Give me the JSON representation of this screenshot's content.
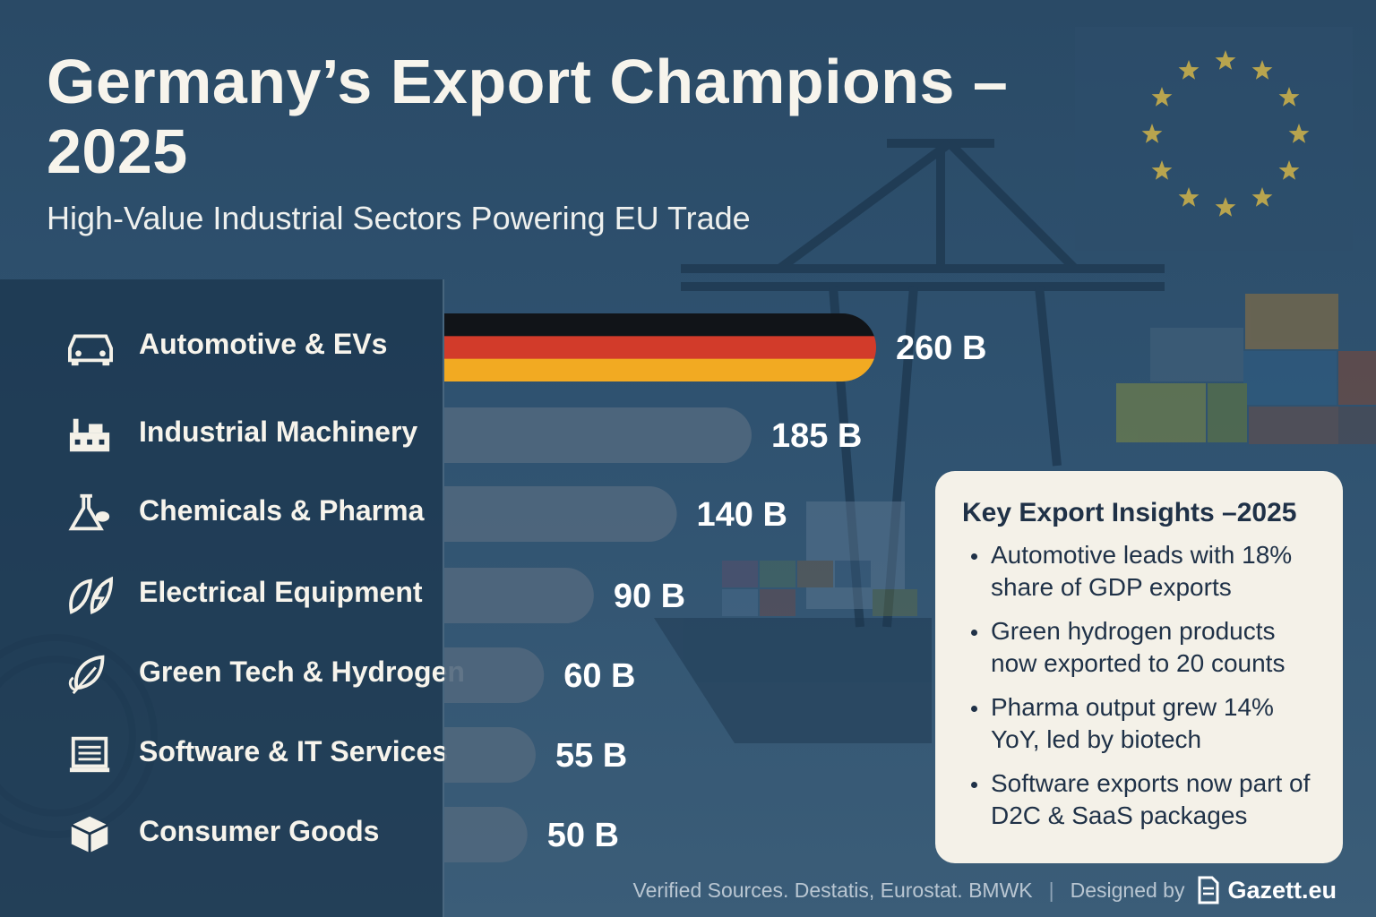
{
  "header": {
    "title": "Germany’s Export Champions – 2025",
    "subtitle": "High-Value Industrial Sectors Powering EU Trade"
  },
  "chart_data": {
    "type": "bar",
    "orientation": "horizontal",
    "categories": [
      "Automotive & EVs",
      "Industrial Machinery",
      "Chemicals & Pharma",
      "Electrical Equipment",
      "Green Tech & Hydrogen",
      "Software & IT Services",
      "Consumer Goods"
    ],
    "values": [
      260,
      185,
      140,
      90,
      60,
      55,
      50
    ],
    "value_labels": [
      "260 B",
      "185 B",
      "140 B",
      "90 B",
      "60 B",
      "55 B",
      "50 B"
    ],
    "icons": [
      "car-icon",
      "factory-icon",
      "flask-icon",
      "leaf-bolt-icon",
      "leaf-icon",
      "document-icon",
      "box-icon"
    ],
    "unit": "B",
    "title": "Germany’s Export Champions – 2025",
    "xlim": [
      0,
      260
    ],
    "highlight_colors": [
      "#111418",
      "#d23b2a",
      "#f2aa22"
    ],
    "bar_color": "#50677d"
  },
  "insights": {
    "title": "Key Export Insights –2025",
    "items": [
      "Automotive leads with 18% share of GDP exports",
      "Green hydrogen products now exported to 20 counts",
      "Pharma output grew 14% YoY, led by biotech",
      "Software exports now part of D2C & SaaS packages"
    ]
  },
  "footer": {
    "sources": "Verified Sources. Destatis, Eurostat. BMWK",
    "separator": "|",
    "designed_by": "Designed by",
    "brand": "Gazett.eu"
  }
}
